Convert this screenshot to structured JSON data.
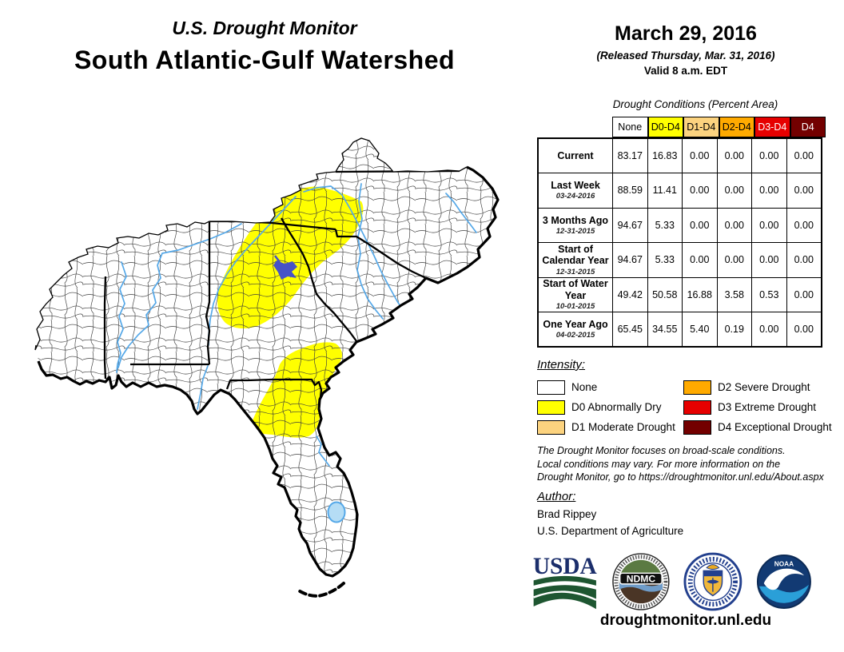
{
  "header": {
    "title_small": "U.S. Drought Monitor",
    "title_large": "South Atlantic-Gulf Watershed",
    "date": "March 29, 2016",
    "released": "(Released Thursday, Mar. 31, 2016)",
    "valid": "Valid 8 a.m. EDT"
  },
  "table": {
    "title": "Drought Conditions (Percent Area)",
    "columns": [
      "None",
      "D0-D4",
      "D1-D4",
      "D2-D4",
      "D3-D4",
      "D4"
    ],
    "col_colors": [
      "#FFFFFF",
      "#FFFF00",
      "#FCD37F",
      "#FFAA00",
      "#E60000",
      "#730000"
    ],
    "rows": [
      {
        "label": "Current",
        "sub": "",
        "values": [
          "83.17",
          "16.83",
          "0.00",
          "0.00",
          "0.00",
          "0.00"
        ]
      },
      {
        "label": "Last Week",
        "sub": "03-24-2016",
        "values": [
          "88.59",
          "11.41",
          "0.00",
          "0.00",
          "0.00",
          "0.00"
        ]
      },
      {
        "label": "3 Months Ago",
        "sub": "12-31-2015",
        "values": [
          "94.67",
          "5.33",
          "0.00",
          "0.00",
          "0.00",
          "0.00"
        ]
      },
      {
        "label": "Start of Calendar Year",
        "sub": "12-31-2015",
        "values": [
          "94.67",
          "5.33",
          "0.00",
          "0.00",
          "0.00",
          "0.00"
        ]
      },
      {
        "label": "Start of Water Year",
        "sub": "10-01-2015",
        "values": [
          "49.42",
          "50.58",
          "16.88",
          "3.58",
          "0.53",
          "0.00"
        ]
      },
      {
        "label": "One Year Ago",
        "sub": "04-02-2015",
        "values": [
          "65.45",
          "34.55",
          "5.40",
          "0.19",
          "0.00",
          "0.00"
        ]
      }
    ]
  },
  "legend": {
    "title": "Intensity:",
    "items": [
      {
        "label": "None",
        "color": "#FFFFFF"
      },
      {
        "label": "D0 Abnormally Dry",
        "color": "#FFFF00"
      },
      {
        "label": "D1 Moderate Drought",
        "color": "#FCD37F"
      },
      {
        "label": "D2 Severe Drought",
        "color": "#FFAA00"
      },
      {
        "label": "D3 Extreme Drought",
        "color": "#E60000"
      },
      {
        "label": "D4 Exceptional Drought",
        "color": "#730000"
      }
    ]
  },
  "disclaimer": {
    "line1": "The Drought Monitor focuses on broad-scale conditions.",
    "line2": "Local conditions may vary. For more information on the",
    "line3": "Drought Monitor, go to https://droughtmonitor.unl.edu/About.aspx"
  },
  "author": {
    "title": "Author:",
    "name": "Brad Rippey",
    "org": "U.S. Department of Agriculture"
  },
  "logos": {
    "usda_text": "USDA",
    "ndmc_text": "NDMC",
    "noaa_text": "NOAA"
  },
  "footer": {
    "url": "droughtmonitor.unl.edu"
  },
  "map_colors": {
    "river_blue": "#55a8e8",
    "lake_light_blue": "#b5ddf5",
    "lake_dark_blue": "#4753c6",
    "county_line": "#3a3a3a"
  }
}
